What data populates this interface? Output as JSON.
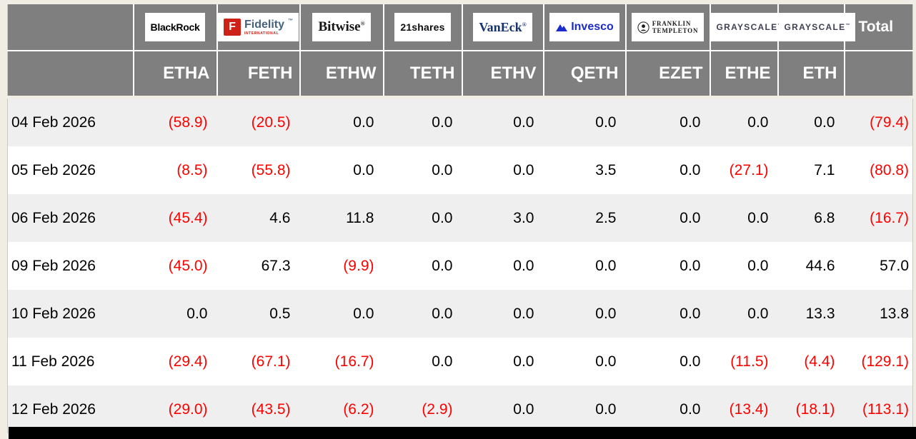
{
  "chart_data": {
    "type": "table",
    "row_header_label": "",
    "total_label": "Total",
    "providers": [
      {
        "name": "BlackRock",
        "logo": "blackrock-logo"
      },
      {
        "name": "Fidelity",
        "logo": "fidelity-logo",
        "sub": "INTERNATIONAL"
      },
      {
        "name": "Bitwise",
        "logo": "bitwise-logo"
      },
      {
        "name": "21shares",
        "logo": "21shares-logo"
      },
      {
        "name": "VanEck",
        "logo": "vaneck-logo"
      },
      {
        "name": "Invesco",
        "logo": "invesco-logo"
      },
      {
        "name": "FRANKLIN TEMPLETON",
        "logo": "franklin-templeton-logo",
        "line1": "FRANKLIN",
        "line2": "TEMPLETON"
      },
      {
        "name": "GRAYSCALE",
        "logo": "grayscale-logo"
      },
      {
        "name": "GRAYSCALE",
        "logo": "grayscale-logo"
      }
    ],
    "tickers": [
      "ETHA",
      "FETH",
      "ETHW",
      "TETH",
      "ETHV",
      "QETH",
      "EZET",
      "ETHE",
      "ETH"
    ],
    "rows": [
      {
        "date": "04 Feb 2026",
        "values": [
          "(58.9)",
          "(20.5)",
          "0.0",
          "0.0",
          "0.0",
          "0.0",
          "0.0",
          "0.0",
          "0.0"
        ],
        "total": "(79.4)"
      },
      {
        "date": "05 Feb 2026",
        "values": [
          "(8.5)",
          "(55.8)",
          "0.0",
          "0.0",
          "0.0",
          "3.5",
          "0.0",
          "(27.1)",
          "7.1"
        ],
        "total": "(80.8)"
      },
      {
        "date": "06 Feb 2026",
        "values": [
          "(45.4)",
          "4.6",
          "11.8",
          "0.0",
          "3.0",
          "2.5",
          "0.0",
          "0.0",
          "6.8"
        ],
        "total": "(16.7)"
      },
      {
        "date": "09 Feb 2026",
        "values": [
          "(45.0)",
          "67.3",
          "(9.9)",
          "0.0",
          "0.0",
          "0.0",
          "0.0",
          "0.0",
          "44.6"
        ],
        "total": "57.0"
      },
      {
        "date": "10 Feb 2026",
        "values": [
          "0.0",
          "0.5",
          "0.0",
          "0.0",
          "0.0",
          "0.0",
          "0.0",
          "0.0",
          "13.3"
        ],
        "total": "13.8"
      },
      {
        "date": "11 Feb 2026",
        "values": [
          "(29.4)",
          "(67.1)",
          "(16.7)",
          "0.0",
          "0.0",
          "0.0",
          "0.0",
          "(11.5)",
          "(4.4)"
        ],
        "total": "(129.1)"
      },
      {
        "date": "12 Feb 2026",
        "values": [
          "(29.0)",
          "(43.5)",
          "(6.2)",
          "(2.9)",
          "0.0",
          "0.0",
          "0.0",
          "(13.4)",
          "(18.1)"
        ],
        "total": "(113.1)"
      }
    ],
    "negative_format": "parentheses",
    "colors": {
      "negative_text": "#ff0000",
      "positive_text": "#000000",
      "header_background": "#7f7f7f",
      "header_text": "#ffffff",
      "alt_row_background": "#efefef",
      "row_background": "#ffffff",
      "page_background": "#f0ede5",
      "bottom_band": "#000000"
    }
  }
}
